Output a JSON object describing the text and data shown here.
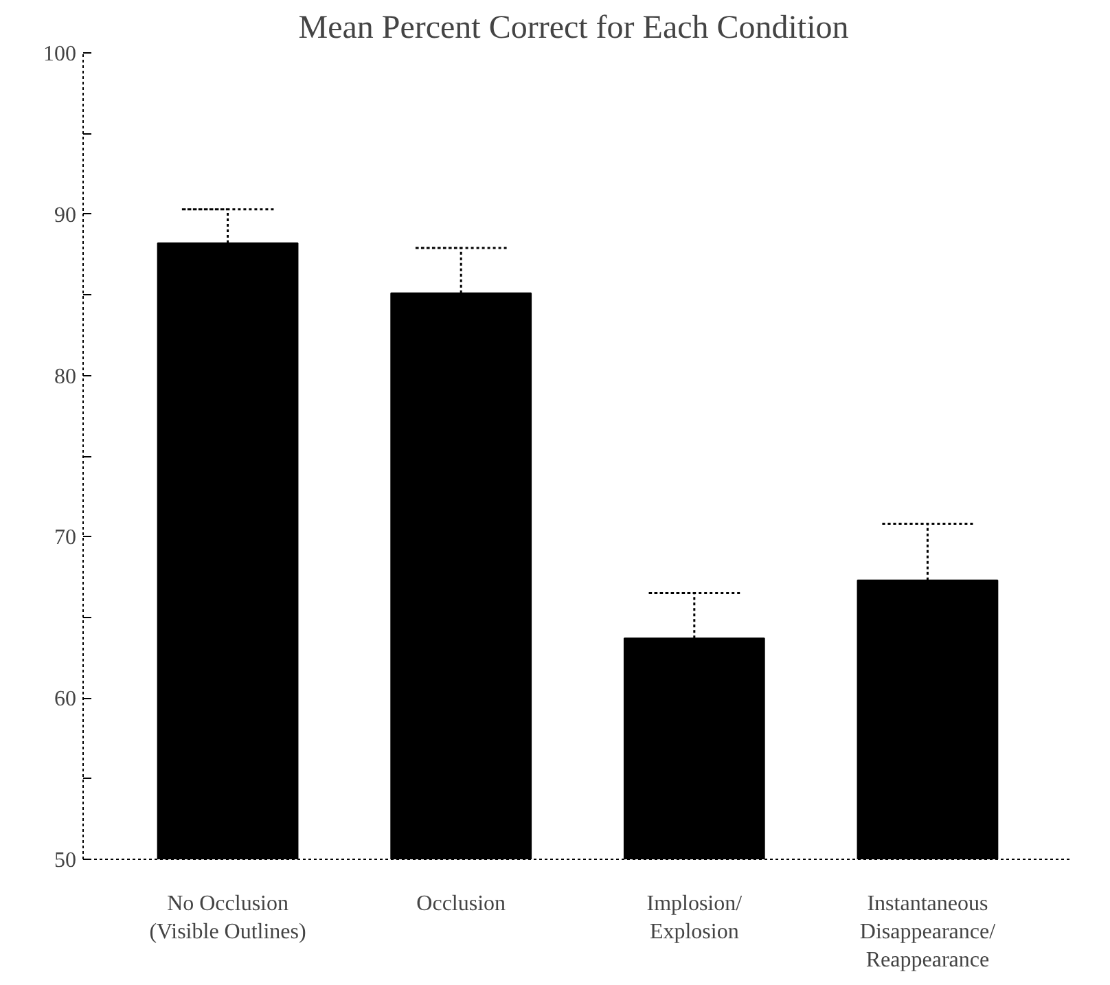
{
  "chart_data": {
    "type": "bar",
    "title": "Mean Percent Correct  for Each Condition",
    "categories": [
      "No Occlusion\n(Visible Outlines)",
      "Occlusion",
      "Implosion/\nExplosion",
      "Instantaneous\nDisappearance/\nReappearance"
    ],
    "values": [
      88.2,
      85.1,
      63.7,
      67.3
    ],
    "errors": [
      [
        88.2,
        90.3
      ],
      [
        85.1,
        87.9
      ],
      [
        63.7,
        66.5
      ],
      [
        67.3,
        70.8
      ]
    ],
    "color": "#000000",
    "ylim": [
      50,
      100
    ],
    "yticks": [
      50,
      {
        "value": 55,
        "label": null
      },
      60,
      {
        "value": 65,
        "label": null
      },
      70,
      {
        "value": 75,
        "label": null
      },
      80,
      {
        "value": 85,
        "label": null
      },
      90,
      {
        "value": 95,
        "label": null
      },
      100
    ],
    "grid": false
  }
}
